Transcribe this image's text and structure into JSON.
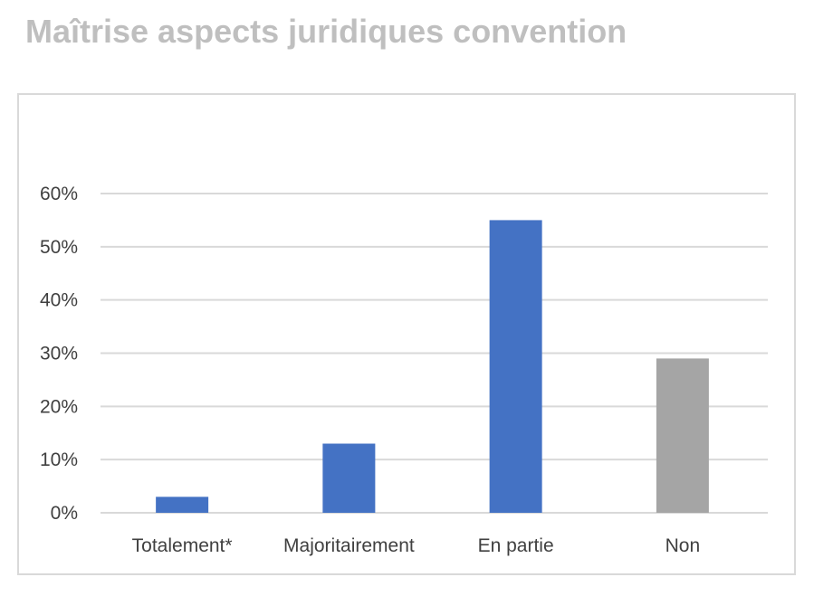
{
  "chart_data": {
    "type": "bar",
    "title": "Maîtrise aspects juridiques convention",
    "categories": [
      "Totalement*",
      "Majoritairement",
      "En partie",
      "Non"
    ],
    "values": [
      3,
      13,
      55,
      29
    ],
    "value_unit": "%",
    "bar_colors": [
      "#4472c4",
      "#4472c4",
      "#4472c4",
      "#a5a5a5"
    ],
    "ylim": [
      0,
      60
    ],
    "yticks": [
      0,
      10,
      20,
      30,
      40,
      50,
      60
    ],
    "ytick_labels": [
      "0%",
      "10%",
      "20%",
      "30%",
      "40%",
      "50%",
      "60%"
    ],
    "xlabel": "",
    "ylabel": "",
    "grid": true,
    "legend": "none"
  },
  "colors": {
    "title": "#bfbfbf",
    "gridline": "#d9d9d9",
    "frame": "#d9d9d9",
    "axis_text": "#404040"
  }
}
